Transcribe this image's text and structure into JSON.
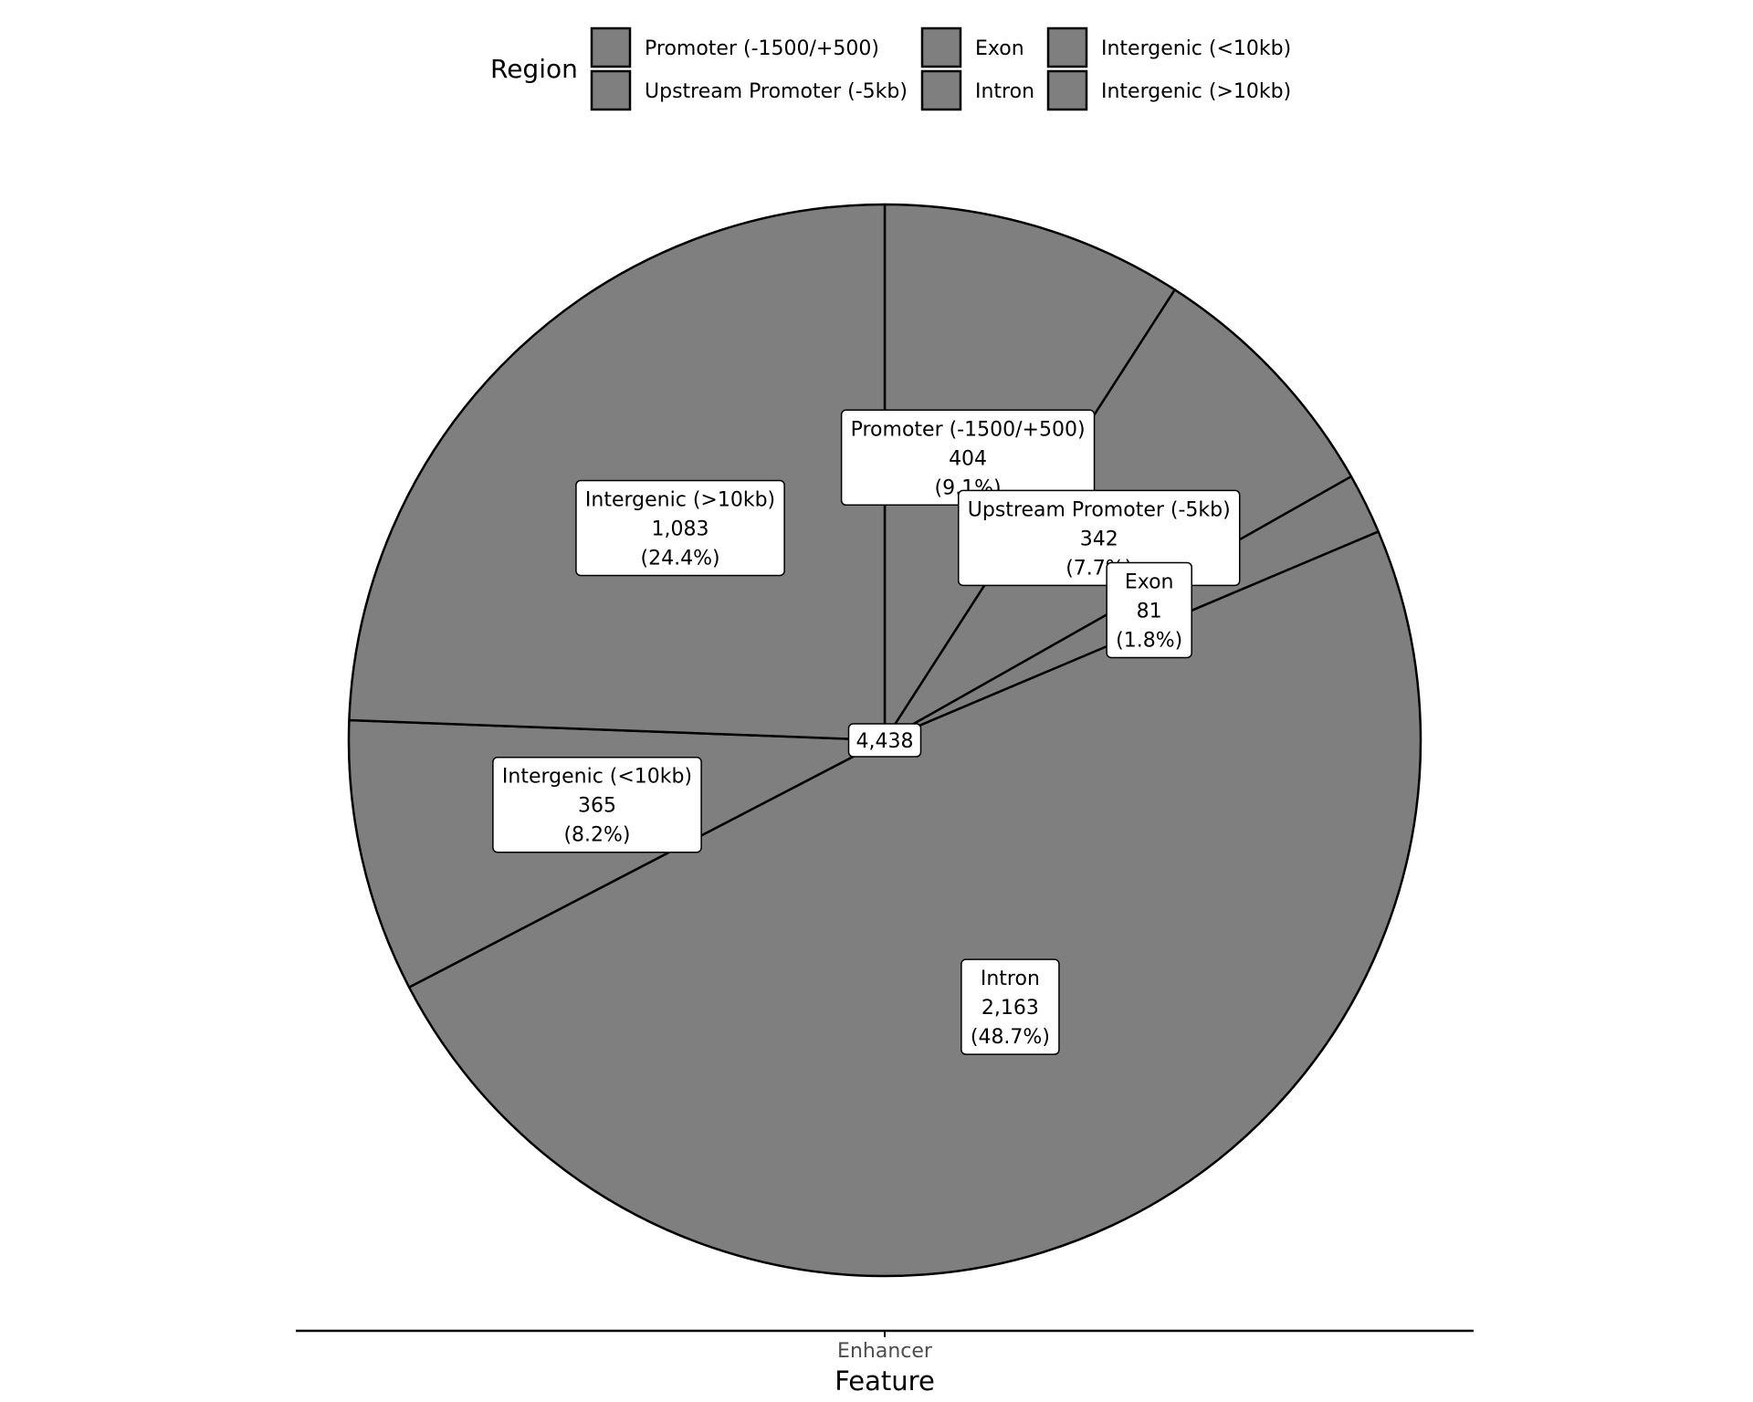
{
  "chart_data": {
    "type": "pie",
    "legend": {
      "title": "Region",
      "placement": "top",
      "entries": [
        "Promoter (-1500/+500)",
        "Upstream Promoter (-5kb)",
        "Exon",
        "Intron",
        "Intergenic (<10kb)",
        "Intergenic (>10kb)"
      ]
    },
    "slices": [
      {
        "label": "Promoter (-1500/+500)",
        "value": 404,
        "value_text": "404",
        "percent_text": "(9.1%)"
      },
      {
        "label": "Upstream Promoter (-5kb)",
        "value": 342,
        "value_text": "342",
        "percent_text": "(7.7%)"
      },
      {
        "label": "Exon",
        "value": 81,
        "value_text": "81",
        "percent_text": "(1.8%)"
      },
      {
        "label": "Intron",
        "value": 2163,
        "value_text": "2,163",
        "percent_text": "(48.7%)"
      },
      {
        "label": "Intergenic (<10kb)",
        "value": 365,
        "value_text": "365",
        "percent_text": "(8.2%)"
      },
      {
        "label": "Intergenic (>10kb)",
        "value": 1083,
        "value_text": "1,083",
        "percent_text": "(24.4%)"
      }
    ],
    "total_text": "4,438",
    "categories": [
      "Enhancer"
    ],
    "xlabel": "Feature",
    "colors": {
      "slice_fill": "#7f7f7f",
      "stroke": "#000000",
      "label_bg": "#ffffff"
    }
  }
}
